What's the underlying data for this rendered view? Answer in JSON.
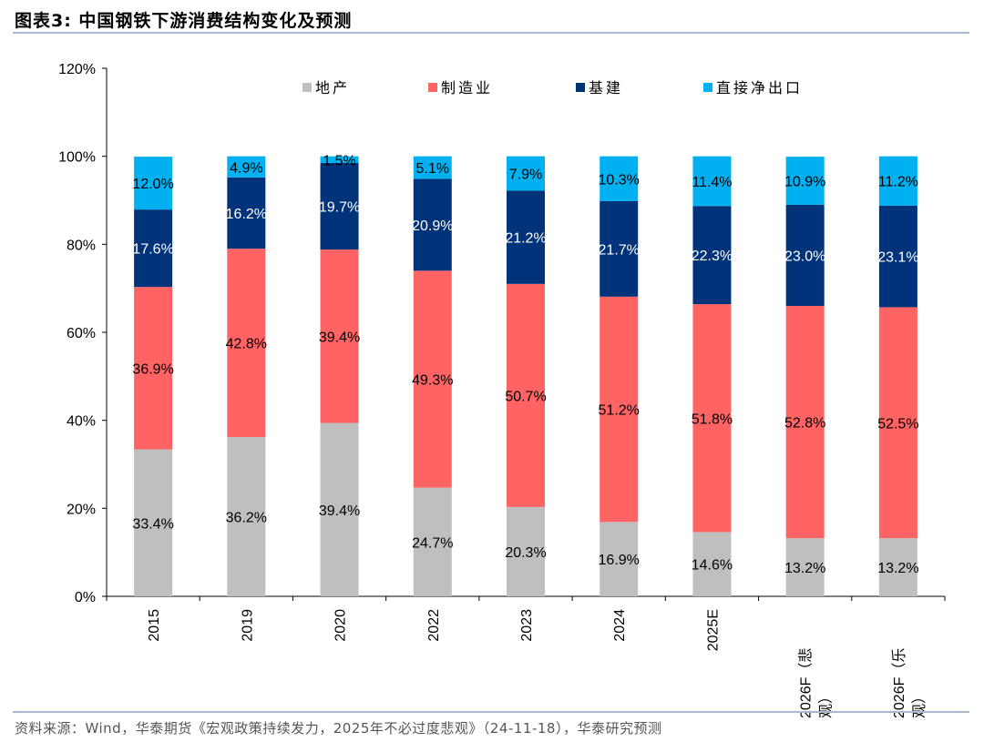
{
  "header": {
    "title": "图表3:   中国钢铁下游消费结构变化及预测"
  },
  "footer": {
    "source": "资料来源：Wind，华泰期货《宏观政策持续发力，2025年不必过度悲观》（24-11-18），华泰研究预测"
  },
  "chart_data": {
    "type": "bar",
    "stacked": true,
    "categories": [
      "2015",
      "2019",
      "2020",
      "2022",
      "2023",
      "2024",
      "2025E",
      "2026F（悲观）",
      "2026F（乐观）"
    ],
    "series": [
      {
        "name": "地产",
        "color": "#bfbfbf",
        "values": [
          33.4,
          36.2,
          39.4,
          24.7,
          20.3,
          16.9,
          14.6,
          13.2,
          13.2
        ]
      },
      {
        "name": "制造业",
        "color": "#ff6363",
        "values": [
          36.9,
          42.8,
          39.4,
          49.3,
          50.7,
          51.2,
          51.8,
          52.8,
          52.5
        ]
      },
      {
        "name": "基建",
        "color": "#00337a",
        "values": [
          17.6,
          16.2,
          19.7,
          20.9,
          21.2,
          21.7,
          22.3,
          23.0,
          23.1
        ]
      },
      {
        "name": "直接净出口",
        "color": "#00b0f0",
        "values": [
          12.0,
          4.9,
          1.5,
          5.1,
          7.9,
          10.3,
          11.4,
          10.9,
          11.2
        ]
      }
    ],
    "ylim": [
      0,
      120
    ],
    "yticks": [
      "0%",
      "20%",
      "40%",
      "60%",
      "80%",
      "100%",
      "120%"
    ],
    "legend": "top",
    "grid": false,
    "unit": "%"
  }
}
